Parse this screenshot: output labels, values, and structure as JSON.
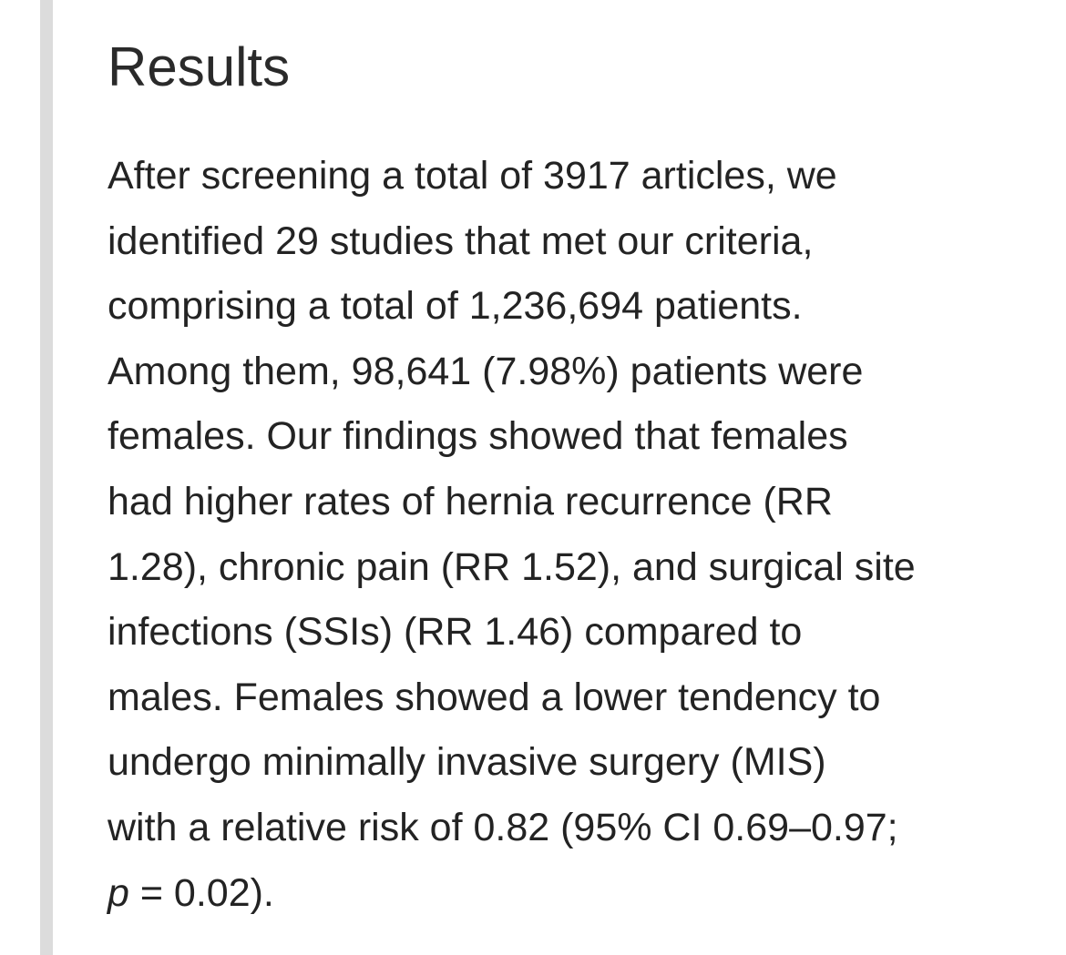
{
  "section": {
    "heading": "Results",
    "lines": [
      "After screening a total of 3917 articles, we",
      "identified 29 studies that met our criteria,",
      "comprising a total of 1,236,694 patients.",
      "Among them, 98,641 (7.98%) patients were",
      "females. Our findings showed that females",
      "had higher rates of hernia recurrence (RR",
      "1.28), chronic pain (RR 1.52), and surgical site",
      "infections (SSIs) (RR 1.46) compared to",
      "males. Females showed a lower tendency to",
      "undergo minimally invasive surgery (MIS)",
      "with a relative risk of 0.82 (95% CI 0.69–0.97;"
    ],
    "last_line": {
      "italic": "p",
      "rest": " = 0.02)."
    }
  }
}
